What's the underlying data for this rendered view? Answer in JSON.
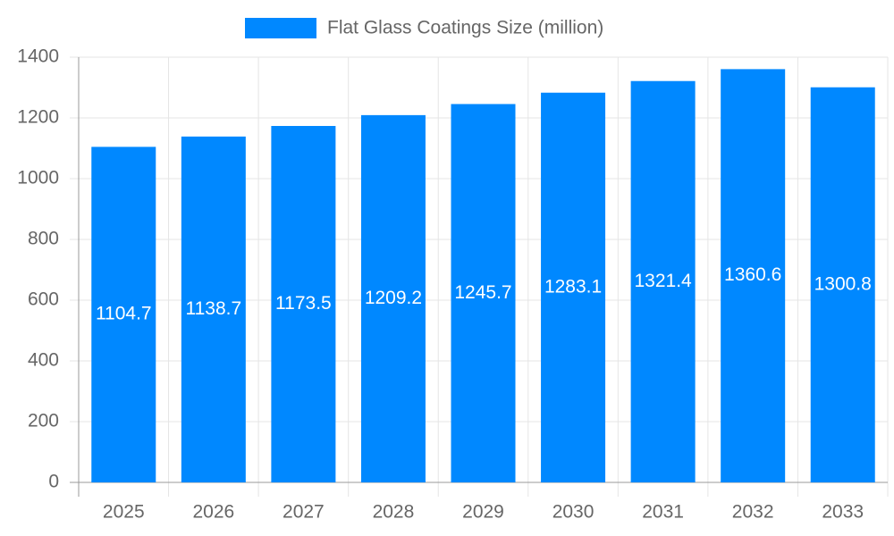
{
  "chart_data": {
    "type": "bar",
    "categories": [
      "2025",
      "2026",
      "2027",
      "2028",
      "2029",
      "2030",
      "2031",
      "2032",
      "2033"
    ],
    "series": [
      {
        "name": "Flat Glass Coatings Size (million)",
        "color": "#0088ff",
        "values": [
          1104.7,
          1138.7,
          1173.5,
          1209.2,
          1245.7,
          1283.1,
          1321.4,
          1360.6,
          1300.8
        ]
      }
    ],
    "ylim": [
      0,
      1400
    ],
    "yticks": [
      0,
      200,
      400,
      600,
      800,
      1000,
      1200,
      1400
    ],
    "grid": true,
    "legend": "top"
  }
}
